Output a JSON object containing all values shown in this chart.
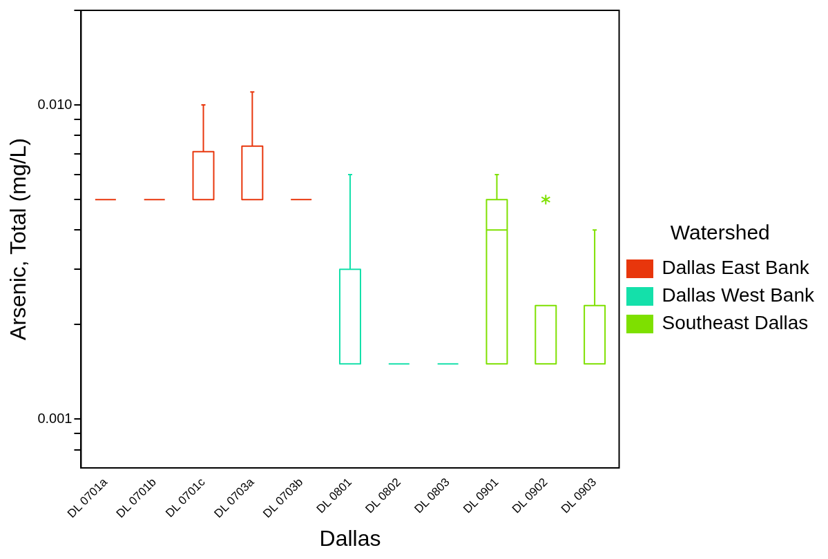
{
  "chart_data": {
    "type": "box",
    "xlabel": "Dallas",
    "ylabel": "Arsenic, Total (mg/L)",
    "legend_title": "Watershed",
    "legend": "right",
    "grid": false,
    "log": "y",
    "categories": [
      "DL 0701a",
      "DL 0701b",
      "DL 0701c",
      "DL 0703a",
      "DL 0703b",
      "DL 0801",
      "DL 0802",
      "DL 0803",
      "DL 0901",
      "DL 0902",
      "DL 0903"
    ],
    "ylim": [
      0.0007,
      0.02
    ],
    "yticks": [
      {
        "value": 0.0008,
        "label": null
      },
      {
        "value": 0.0009,
        "label": null
      },
      {
        "value": 0.001,
        "label": "0.001"
      },
      {
        "value": 0.002,
        "label": null
      },
      {
        "value": 0.003,
        "label": null
      },
      {
        "value": 0.004,
        "label": null
      },
      {
        "value": 0.005,
        "label": null
      },
      {
        "value": 0.006,
        "label": null
      },
      {
        "value": 0.007,
        "label": null
      },
      {
        "value": 0.008,
        "label": null
      },
      {
        "value": 0.009,
        "label": null
      },
      {
        "value": 0.01,
        "label": "0.010"
      },
      {
        "value": 0.02,
        "label": null
      }
    ],
    "series": [
      {
        "name": "Dallas East Bank",
        "color": "#e8360c",
        "boxes": [
          {
            "low": 0.005,
            "q1": 0.005,
            "median": 0.005,
            "q3": 0.005,
            "high": 0.005
          },
          {
            "low": 0.005,
            "q1": 0.005,
            "median": 0.005,
            "q3": 0.005,
            "high": 0.005
          },
          {
            "low": 0.005,
            "q1": 0.005,
            "median": 0.005,
            "q3": 0.0071,
            "high": 0.01
          },
          {
            "low": 0.005,
            "q1": 0.005,
            "median": 0.005,
            "q3": 0.0074,
            "high": 0.011
          },
          {
            "low": 0.005,
            "q1": 0.005,
            "median": 0.005,
            "q3": 0.005,
            "high": 0.005
          },
          null,
          null,
          null,
          null,
          null,
          null
        ]
      },
      {
        "name": "Dallas West Bank",
        "color": "#14e0aa",
        "boxes": [
          null,
          null,
          null,
          null,
          null,
          {
            "low": 0.0015,
            "q1": 0.0015,
            "median": 0.0015,
            "q3": 0.003,
            "high": 0.006
          },
          {
            "low": 0.0015,
            "q1": 0.0015,
            "median": 0.0015,
            "q3": 0.0015,
            "high": 0.0015
          },
          {
            "low": 0.0015,
            "q1": 0.0015,
            "median": 0.0015,
            "q3": 0.0015,
            "high": 0.0015
          },
          null,
          null,
          null
        ]
      },
      {
        "name": "Southeast Dallas",
        "color": "#7ee000",
        "boxes": [
          null,
          null,
          null,
          null,
          null,
          null,
          null,
          null,
          {
            "low": 0.0015,
            "q1": 0.0015,
            "median": 0.004,
            "q3": 0.005,
            "high": 0.006
          },
          {
            "low": 0.0015,
            "q1": 0.0015,
            "median": 0.0015,
            "q3": 0.0023,
            "high": 0.0023,
            "outliers": [
              0.005
            ]
          },
          {
            "low": 0.0015,
            "q1": 0.0015,
            "median": 0.0015,
            "q3": 0.0023,
            "high": 0.004
          }
        ]
      }
    ]
  }
}
